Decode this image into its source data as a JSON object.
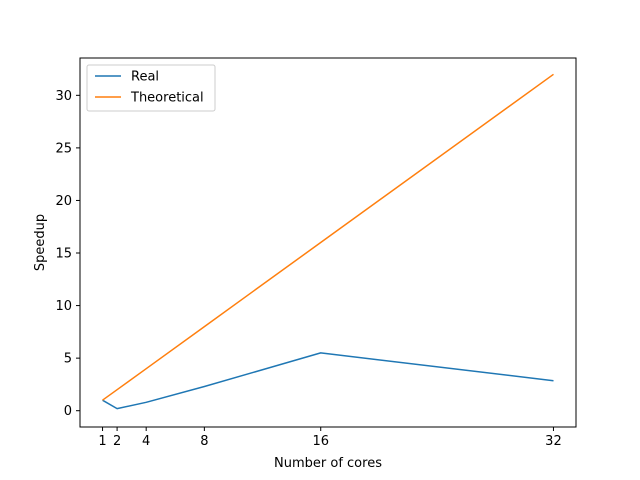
{
  "chart_data": {
    "type": "line",
    "title": "",
    "xlabel": "Number of cores",
    "ylabel": "Speedup",
    "x": [
      1,
      2,
      4,
      8,
      16,
      32
    ],
    "xlim": [
      -0.55,
      33.55
    ],
    "ylim": [
      -1.55,
      33.55
    ],
    "xticks": [
      1,
      2,
      4,
      8,
      16,
      32
    ],
    "yticks": [
      0,
      5,
      10,
      15,
      20,
      25,
      30
    ],
    "grid": false,
    "legend_position": "top-left",
    "series": [
      {
        "name": "Real",
        "color": "#1f77b4",
        "values": [
          1.0,
          0.2,
          0.8,
          2.3,
          5.5,
          2.85
        ]
      },
      {
        "name": "Theoretical",
        "color": "#ff7f0e",
        "values": [
          1,
          2,
          4,
          8,
          16,
          32
        ]
      }
    ]
  }
}
